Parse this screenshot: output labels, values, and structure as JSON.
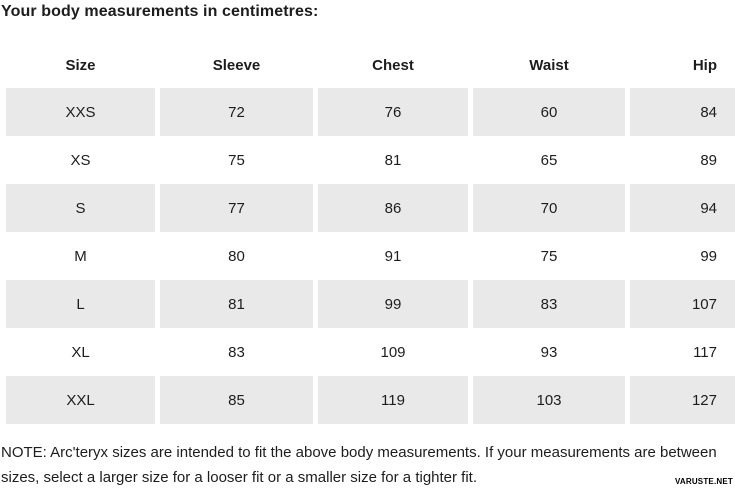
{
  "chart_data": {
    "type": "table",
    "title": "Your body measurements in centimetres:",
    "columns": [
      "Size",
      "Sleeve",
      "Chest",
      "Waist",
      "Hip"
    ],
    "rows": [
      {
        "size": "XXS",
        "sleeve": 72,
        "chest": 76,
        "waist": 60,
        "hip": 84
      },
      {
        "size": "XS",
        "sleeve": 75,
        "chest": 81,
        "waist": 65,
        "hip": 89
      },
      {
        "size": "S",
        "sleeve": 77,
        "chest": 86,
        "waist": 70,
        "hip": 94
      },
      {
        "size": "M",
        "sleeve": 80,
        "chest": 91,
        "waist": 75,
        "hip": 99
      },
      {
        "size": "L",
        "sleeve": 81,
        "chest": 99,
        "waist": 83,
        "hip": 107
      },
      {
        "size": "XL",
        "sleeve": 83,
        "chest": 109,
        "waist": 93,
        "hip": 117
      },
      {
        "size": "XXL",
        "sleeve": 85,
        "chest": 119,
        "waist": 103,
        "hip": 127
      }
    ],
    "note": "NOTE: Arc'teryx sizes are intended to fit the above body measurements. If your measurements are between sizes, select a larger size for a looser fit or a smaller size for a tighter fit.",
    "layout_hints": {
      "striped_rows": "odd rows (XXS, S, L, XXL) shaded",
      "row_shade_color": "#e9e9e9",
      "last_column_truncated_right": true
    }
  },
  "watermark": "VARUSTE.NET",
  "colors": {
    "row_shade": "#e9e9e9",
    "text": "#1d1d1d",
    "background": "#ffffff"
  }
}
